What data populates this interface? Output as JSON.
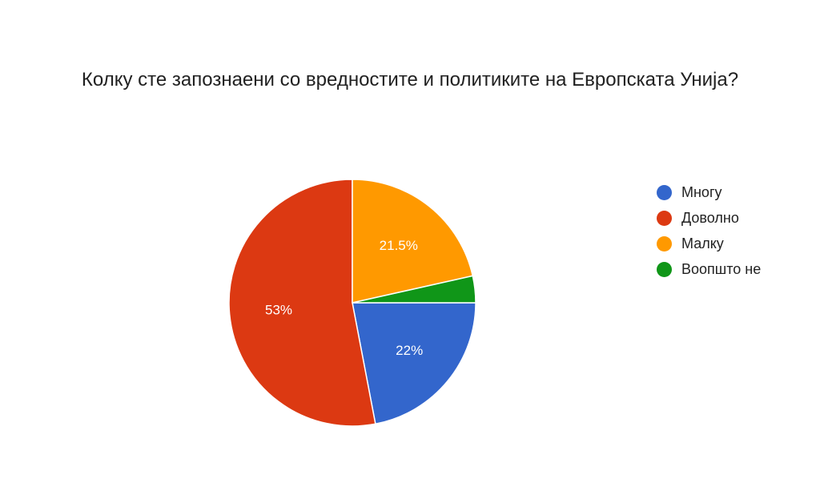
{
  "chart_data": {
    "type": "pie",
    "title": "Колку сте запознаени со вредностите и политиките на Европската Унија?",
    "categories": [
      "Многу",
      "Доволно",
      "Малку",
      "Воопшто не"
    ],
    "values": [
      22,
      53,
      21.5,
      3.5
    ],
    "labels": [
      "22%",
      "53%",
      "21.5%",
      ""
    ],
    "colors": [
      "#3366cc",
      "#dc3912",
      "#ff9900",
      "#109618"
    ],
    "legend_position": "right"
  }
}
